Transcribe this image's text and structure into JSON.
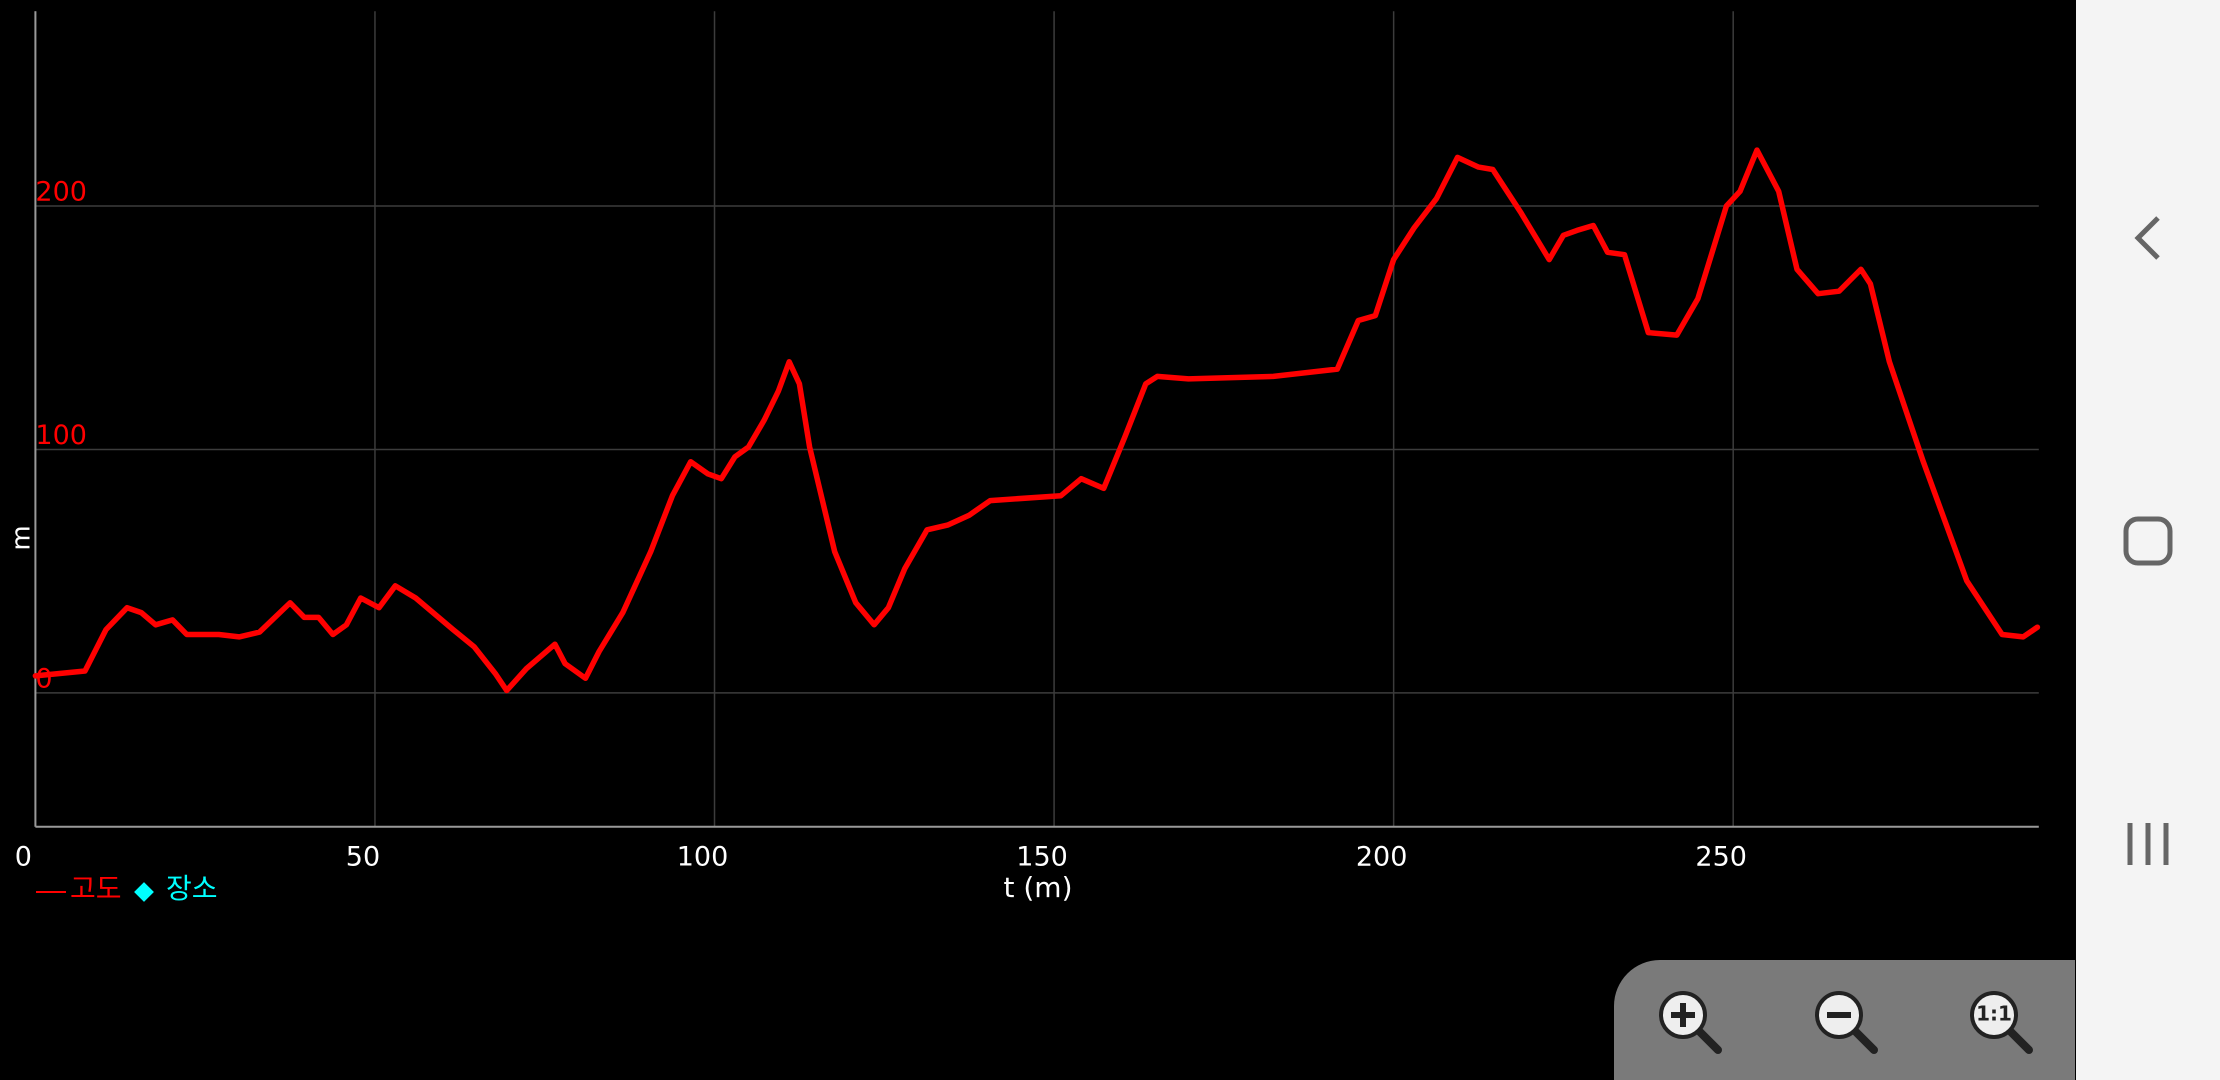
{
  "chart_data": {
    "type": "line",
    "ylabel": "m",
    "xlabel": "t (m)",
    "x": [
      0,
      7.3,
      10.4,
      13.5,
      15.6,
      17.7,
      20.2,
      22.3,
      27,
      30,
      33,
      37.5,
      39.6,
      41.7,
      43.8,
      45.8,
      47.9,
      50.6,
      53,
      56,
      61.5,
      64.6,
      67.7,
      69.4,
      72.3,
      76.5,
      78,
      81,
      83,
      86.5,
      90.6,
      93.8,
      96.5,
      99,
      101,
      103,
      105,
      107.3,
      109.4,
      111,
      112.5,
      114,
      117.7,
      120.8,
      123.5,
      125.6,
      128,
      131.3,
      134.4,
      137.5,
      140.6,
      151,
      154,
      157.3,
      160.4,
      163.5,
      165.2,
      169.8,
      182.3,
      191.7,
      194.8,
      197.3,
      200,
      203,
      206.3,
      209.4,
      212.5,
      214.6,
      218.8,
      222.9,
      225,
      227,
      229.4,
      231.5,
      234,
      237.5,
      241.7,
      244.8,
      249,
      251,
      253.5,
      256.7,
      259.4,
      262.5,
      265.6,
      268.8,
      270.2,
      273,
      278,
      284.4,
      289.6,
      292.7,
      294.8
    ],
    "series": [
      {
        "name": "고도",
        "color": "#ff0000",
        "values": [
          7,
          9,
          26,
          35,
          33,
          28,
          30,
          24,
          24,
          23,
          25,
          37,
          31,
          31,
          24,
          28,
          39,
          35,
          44,
          39,
          26,
          19,
          8,
          1,
          10,
          20,
          12,
          6,
          17,
          33,
          58,
          81,
          95,
          90,
          88,
          97,
          101,
          112,
          124,
          136,
          127,
          101,
          58,
          37,
          28,
          35,
          51,
          67,
          69,
          73,
          79,
          81,
          88,
          84,
          105,
          127,
          130,
          129,
          130,
          133,
          153,
          155,
          178,
          191,
          203,
          220,
          216,
          215,
          197,
          178,
          188,
          190,
          192,
          181,
          180,
          148,
          147,
          162,
          200,
          206,
          223,
          206,
          174,
          164,
          165,
          174,
          168,
          136,
          95,
          46,
          24,
          23,
          27
        ]
      }
    ],
    "places_legend": {
      "name": "장소",
      "color": "#00ffff"
    },
    "xlim": [
      0,
      295
    ],
    "ylim": [
      -55,
      280
    ],
    "xticks": [
      0,
      50,
      100,
      150,
      200,
      250
    ],
    "yticks": [
      0,
      100,
      200
    ],
    "ytick_color": "#ff0000",
    "grid": true
  },
  "ui": {
    "zoom_reset_text": "1:1"
  }
}
